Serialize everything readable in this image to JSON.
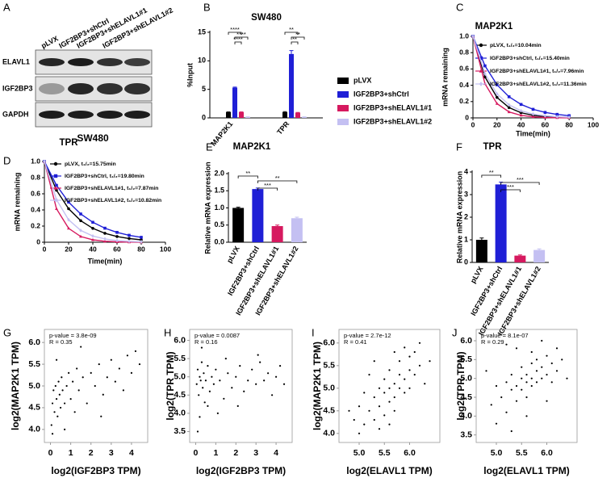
{
  "blot": {
    "label": "A",
    "columns": [
      "pLVX",
      "IGF2BP3+shCtrl",
      "IGF2BP3+shELAVL1#1",
      "IGF2BP3+shELAVL1#2"
    ],
    "rows": [
      "ELAVL1",
      "IGF2BP3",
      "GAPDH"
    ],
    "caption": "SW480"
  },
  "chart_data": [
    {
      "label": "B",
      "type": "bar",
      "title": "SW480",
      "ylabel": "%Input",
      "categories": [
        "MAP2K1",
        "TPR"
      ],
      "series": [
        {
          "name": "pLVX",
          "color": "#000000",
          "values": [
            1.0,
            1.0
          ],
          "errors": [
            0.05,
            0.1
          ]
        },
        {
          "name": "IGF2BP3+shCtrl",
          "color": "#1f1fd6",
          "values": [
            5.3,
            11.2
          ],
          "errors": [
            0.1,
            0.6
          ]
        },
        {
          "name": "IGF2BP3+shELAVL1#1",
          "color": "#d6195f",
          "values": [
            1.0,
            0.9
          ],
          "errors": [
            0.05,
            0.05
          ]
        },
        {
          "name": "IGF2BP3+shELAVL1#2",
          "color": "#c4c0f2",
          "values": [
            0.15,
            0.15
          ],
          "errors": [
            0.02,
            0.02
          ]
        }
      ],
      "ylim": [
        0,
        15
      ],
      "yticks": [
        0,
        5,
        10,
        15
      ],
      "annotations": [
        "****",
        "****",
        "****",
        "**",
        "**",
        "**"
      ]
    },
    {
      "label": "C",
      "type": "line",
      "title": "MAP2K1",
      "ylabel": "mRNA remaining",
      "xlabel": "Time(min)",
      "x": [
        0,
        10,
        20,
        30,
        40,
        50,
        60,
        70,
        80
      ],
      "series": [
        {
          "name": "pLVX, t₁/₂=10.04min",
          "color": "#000000",
          "marker": "circle",
          "values": [
            1,
            0.501,
            0.251,
            0.126,
            0.063,
            0.032,
            0.016,
            0.008,
            0.004
          ]
        },
        {
          "name": "IGF2BP3+shCtrl, t₁/₂=15.40min",
          "color": "#1f1fd6",
          "marker": "square",
          "values": [
            1,
            0.638,
            0.406,
            0.259,
            0.165,
            0.105,
            0.067,
            0.043,
            0.027
          ]
        },
        {
          "name": "IGF2BP3+shELAVL1#1, t₁/₂=7.96min",
          "color": "#d6195f",
          "marker": "triangle",
          "values": [
            1,
            0.419,
            0.175,
            0.073,
            0.031,
            0.013,
            0.005,
            0.002,
            0.001
          ]
        },
        {
          "name": "IGF2BP3+shELAVL1#2, t₁/₂=11.36min",
          "color": "#c4c0f2",
          "marker": "diamond",
          "values": [
            1,
            0.543,
            0.294,
            0.16,
            0.087,
            0.047,
            0.026,
            0.014,
            0.008
          ]
        }
      ],
      "xlim": [
        0,
        100
      ],
      "xticks": [
        0,
        20,
        40,
        60,
        80,
        100
      ],
      "ylim": [
        0,
        1
      ],
      "yticks": [
        0,
        0.2,
        0.4,
        0.6,
        0.8,
        {
          "value": 1,
          "label": "1.0"
        }
      ]
    },
    {
      "label": "D",
      "type": "line",
      "title": "TPR",
      "ylabel": "mRNA remaining",
      "xlabel": "Time(min)",
      "x": [
        0,
        10,
        20,
        30,
        40,
        50,
        60,
        70,
        80
      ],
      "series": [
        {
          "name": "pLVX, t₁/₂=15.75min",
          "color": "#000000",
          "marker": "circle",
          "values": [
            1,
            0.644,
            0.415,
            0.267,
            0.172,
            0.111,
            0.071,
            0.046,
            0.03
          ]
        },
        {
          "name": "IGF2BP3+shCtrl, t₁/₂=19.80min",
          "color": "#1f1fd6",
          "marker": "square",
          "values": [
            1,
            0.705,
            0.497,
            0.35,
            0.247,
            0.174,
            0.122,
            0.086,
            0.061
          ]
        },
        {
          "name": "IGF2BP3+shELAVL1#1, t₁/₂=7.87min",
          "color": "#d6195f",
          "marker": "triangle",
          "values": [
            1,
            0.414,
            0.172,
            0.071,
            0.03,
            0.012,
            0.005,
            0.002,
            0.001
          ]
        },
        {
          "name": "IGF2BP3+shELAVL1#2, t₁/₂=10.82min",
          "color": "#c4c0f2",
          "marker": "diamond",
          "values": [
            1,
            0.527,
            0.278,
            0.146,
            0.077,
            0.041,
            0.021,
            0.011,
            0.006
          ]
        }
      ],
      "xlim": [
        0,
        100
      ],
      "xticks": [
        0,
        20,
        40,
        60,
        80,
        100
      ],
      "ylim": [
        0,
        1
      ],
      "yticks": [
        0,
        0.2,
        0.4,
        0.6,
        0.8,
        {
          "value": 1,
          "label": "1.0"
        }
      ]
    },
    {
      "label": "E",
      "type": "bar",
      "title": "MAP2K1",
      "ylabel": "Relative mRNA expression",
      "categories": [
        "pLVX",
        "IGF2BP3+shCtrl",
        "IGF2BP3+shELAVL1#1",
        "IGF2BP3+shELAVL1#2"
      ],
      "colors": [
        "#000000",
        "#1f1fd6",
        "#d6195f",
        "#c4c0f2"
      ],
      "values": [
        1.0,
        1.55,
        0.47,
        0.7
      ],
      "errors": [
        0.02,
        0.03,
        0.03,
        0.03
      ],
      "ylim": [
        0,
        2
      ],
      "yticks": [
        {
          "value": 0,
          "label": "0.0"
        },
        0.5,
        {
          "value": 1,
          "label": "1.0"
        },
        1.5,
        {
          "value": 2,
          "label": "2.0"
        }
      ],
      "annotations": [
        "**",
        "**",
        "***"
      ]
    },
    {
      "label": "F",
      "type": "bar",
      "title": "TPR",
      "ylabel": "Relative mRNA expression",
      "categories": [
        "pLVX",
        "IGF2BP3+shCtrl",
        "IGF2BP3+shELAVL1#1",
        "IGF2BP3+shELAVL1#2"
      ],
      "colors": [
        "#000000",
        "#1f1fd6",
        "#d6195f",
        "#c4c0f2"
      ],
      "values": [
        1.0,
        3.45,
        0.3,
        0.55
      ],
      "errors": [
        0.08,
        0.1,
        0.03,
        0.05
      ],
      "ylim": [
        0,
        4
      ],
      "yticks": [
        0,
        1,
        2,
        3,
        4
      ],
      "annotations": [
        "**",
        "***",
        "***"
      ]
    },
    {
      "label": "G",
      "type": "scatter",
      "xlabel": "log2(IGF2BP3 TPM)",
      "ylabel": "log2(MAP2K1 TPM)",
      "x": [
        0.05,
        0.1,
        0.15,
        0.2,
        0.25,
        0.3,
        0.35,
        0.4,
        0.45,
        0.5,
        0.55,
        0.6,
        0.7,
        0.8,
        0.9,
        1.0,
        1.1,
        1.2,
        1.3,
        1.4,
        1.6,
        1.8,
        2.0,
        2.2,
        2.4,
        2.6,
        2.8,
        3.0,
        3.2,
        3.4,
        3.6,
        3.8,
        4.0,
        4.2,
        0.1,
        0.3,
        1.5,
        2.5,
        4.4,
        0.7
      ],
      "values": [
        4.1,
        4.6,
        4.9,
        4.4,
        5.0,
        4.7,
        4.3,
        5.1,
        4.8,
        4.5,
        5.2,
        4.9,
        4.6,
        5.0,
        5.3,
        4.7,
        5.1,
        4.4,
        5.4,
        4.9,
        5.2,
        4.6,
        5.3,
        5.0,
        5.5,
        4.8,
        5.2,
        5.6,
        5.1,
        5.4,
        4.9,
        5.7,
        5.3,
        5.8,
        3.9,
        5.6,
        5.9,
        4.3,
        5.5,
        4.0
      ],
      "xlim": [
        -0.3,
        4.8
      ],
      "xticks": [
        0,
        1,
        2,
        3,
        4
      ],
      "ylim": [
        3.7,
        6.3
      ],
      "yticks": [
        {
          "value": 4,
          "label": "4.0"
        },
        4.5,
        {
          "value": 5,
          "label": "5.0"
        },
        5.5,
        {
          "value": 6,
          "label": "6.0"
        }
      ],
      "annotations": [
        "p-value = 3.8e-09",
        "R = 0.35"
      ]
    },
    {
      "label": "H",
      "type": "scatter",
      "xlabel": "log2(IGF2BP3 TPM)",
      "ylabel": "log2(TPR TPM)",
      "x": [
        0.05,
        0.1,
        0.15,
        0.2,
        0.25,
        0.3,
        0.35,
        0.4,
        0.45,
        0.5,
        0.6,
        0.7,
        0.8,
        0.9,
        1.0,
        1.2,
        1.4,
        1.6,
        1.8,
        2.0,
        2.2,
        2.4,
        2.6,
        2.8,
        3.0,
        3.2,
        3.4,
        3.6,
        3.8,
        4.0,
        4.2,
        0.1,
        0.2,
        1.1,
        0.3,
        2.1,
        3.1,
        4.4,
        1.5,
        0.6
      ],
      "values": [
        4.8,
        5.2,
        4.5,
        5.0,
        4.9,
        5.4,
        4.7,
        5.1,
        4.3,
        4.9,
        5.3,
        4.6,
        5.0,
        4.8,
        5.2,
        4.9,
        4.4,
        5.1,
        4.7,
        5.0,
        5.3,
        4.6,
        4.9,
        5.2,
        4.8,
        5.4,
        4.9,
        5.1,
        4.5,
        5.0,
        5.3,
        3.5,
        3.9,
        4.0,
        5.8,
        4.2,
        5.6,
        4.8,
        5.5,
        4.2
      ],
      "xlim": [
        -0.3,
        4.8
      ],
      "xticks": [
        0,
        1,
        2,
        3,
        4
      ],
      "ylim": [
        3.2,
        6.3
      ],
      "yticks": [
        3.5,
        {
          "value": 4,
          "label": "4.0"
        },
        4.5,
        {
          "value": 5,
          "label": "5.0"
        },
        5.5,
        {
          "value": 6,
          "label": "6.0"
        }
      ],
      "annotations": [
        "p-value = 0.0087",
        "R = 0.16"
      ]
    },
    {
      "label": "I",
      "type": "scatter",
      "xlabel": "log2(ELAVL1 TPM)",
      "ylabel": "log2(MAP2K1 TPM)",
      "x": [
        4.9,
        5.0,
        5.1,
        5.1,
        5.2,
        5.3,
        5.3,
        5.4,
        5.4,
        5.5,
        5.5,
        5.5,
        5.6,
        5.6,
        5.6,
        5.7,
        5.7,
        5.7,
        5.8,
        5.8,
        5.8,
        5.9,
        5.9,
        6.0,
        6.0,
        6.0,
        6.1,
        6.1,
        6.2,
        6.3,
        5.2,
        5.0,
        5.4,
        6.2,
        5.6,
        5.9,
        5.3,
        4.8,
        6.4,
        5.7
      ],
      "values": [
        4.3,
        4.6,
        4.2,
        4.9,
        4.5,
        4.8,
        4.3,
        5.0,
        4.6,
        4.9,
        5.2,
        4.4,
        5.0,
        4.7,
        5.4,
        5.1,
        4.8,
        4.5,
        5.3,
        5.0,
        5.6,
        4.9,
        5.2,
        5.4,
        5.7,
        5.0,
        5.3,
        5.8,
        5.5,
        5.1,
        5.3,
        4.0,
        4.1,
        6.0,
        4.2,
        5.9,
        5.6,
        4.5,
        5.6,
        5.8
      ],
      "xlim": [
        4.6,
        6.6
      ],
      "xticks": [
        {
          "value": 5,
          "label": "5.0"
        },
        5.5,
        {
          "value": 6,
          "label": "6.0"
        }
      ],
      "ylim": [
        3.8,
        6.3
      ],
      "yticks": [
        {
          "value": 4,
          "label": "4.0"
        },
        4.5,
        {
          "value": 5,
          "label": "5.0"
        },
        5.5,
        {
          "value": 6,
          "label": "6.0"
        }
      ],
      "annotations": [
        "p-value = 2.7e-12",
        "R = 0.41"
      ]
    },
    {
      "label": "J",
      "type": "scatter",
      "xlabel": "log2(ELAVL1 TPM)",
      "ylabel": "log2(TPR TPM)",
      "x": [
        4.9,
        5.0,
        5.1,
        5.2,
        5.2,
        5.3,
        5.3,
        5.4,
        5.4,
        5.5,
        5.5,
        5.5,
        5.6,
        5.6,
        5.6,
        5.7,
        5.7,
        5.7,
        5.8,
        5.8,
        5.8,
        5.9,
        5.9,
        6.0,
        6.0,
        6.1,
        6.1,
        6.2,
        6.3,
        6.4,
        5.0,
        5.3,
        5.6,
        5.4,
        5.2,
        5.9,
        6.0,
        5.7,
        4.8,
        6.2
      ],
      "values": [
        4.3,
        4.8,
        4.5,
        4.9,
        4.1,
        4.7,
        5.1,
        4.8,
        4.4,
        5.0,
        4.7,
        5.3,
        4.9,
        5.1,
        4.5,
        5.0,
        5.4,
        4.8,
        5.2,
        4.9,
        5.5,
        5.0,
        5.3,
        5.1,
        5.6,
        4.9,
        5.4,
        5.2,
        5.5,
        5.0,
        3.8,
        3.6,
        4.0,
        5.8,
        5.9,
        6.0,
        4.4,
        5.7,
        5.2,
        5.8
      ],
      "xlim": [
        4.6,
        6.6
      ],
      "xticks": [
        {
          "value": 5,
          "label": "5.0"
        },
        5.5,
        {
          "value": 6,
          "label": "6.0"
        }
      ],
      "ylim": [
        3.3,
        6.3
      ],
      "yticks": [
        3.5,
        {
          "value": 4,
          "label": "4.0"
        },
        4.5,
        {
          "value": 5,
          "label": "5.0"
        },
        5.5,
        {
          "value": 6,
          "label": "6.0"
        }
      ],
      "annotations": [
        "p-value = 8.1e-07",
        "R = 0.29"
      ]
    }
  ]
}
